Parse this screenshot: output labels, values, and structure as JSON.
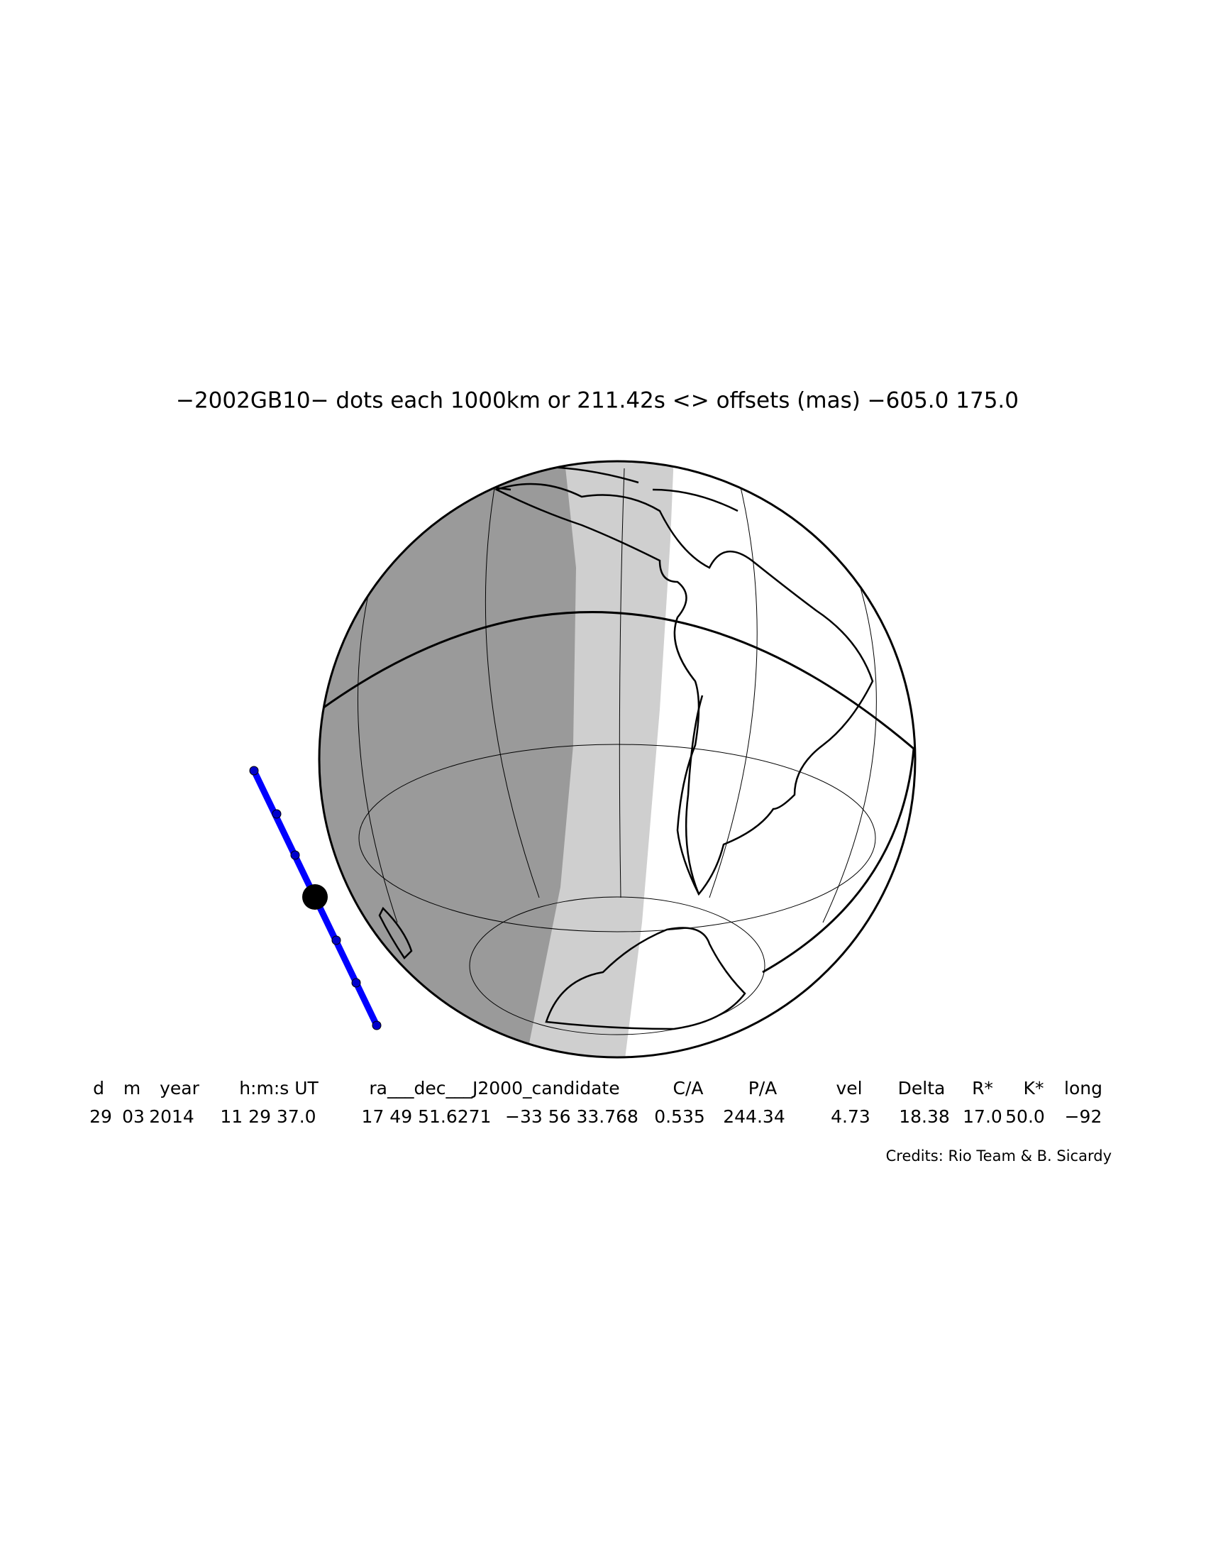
{
  "title": "−2002GB10− dots each 1000km or 211.42s <> offsets (mas) −605.0 175.0",
  "table": {
    "header": [
      "d",
      "m",
      "year",
      "h:m:s UT",
      "ra___dec___J2000_candidate",
      "C/A",
      "P/A",
      "vel",
      "Delta",
      "R*",
      "K*",
      "long"
    ],
    "values": [
      "29",
      "03",
      "2014",
      "11 29 37.0",
      "17 49 51.6271",
      "−33 56 33.768",
      "0.535",
      "244.34",
      "4.73",
      "18.38",
      "17.0",
      "50.0",
      "−92"
    ]
  },
  "credits": "Credits: Rio Team & B. Sicardy"
}
